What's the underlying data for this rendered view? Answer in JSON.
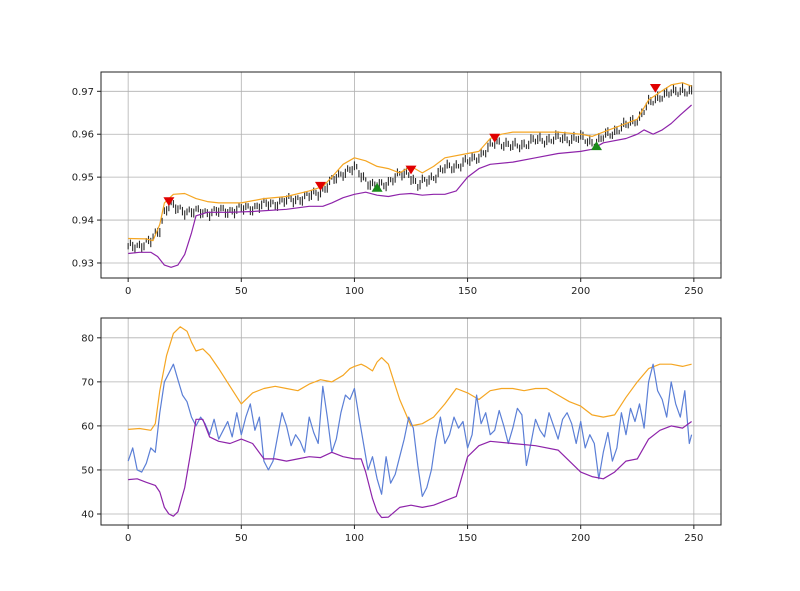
{
  "chart_data": [
    {
      "type": "line",
      "subtype": "ohlc-bars-with-envelope",
      "title": "",
      "xlabel": "",
      "ylabel": "",
      "xlim": [
        -12,
        262
      ],
      "ylim": [
        0.9265,
        0.9745
      ],
      "xticks": [
        0,
        50,
        100,
        150,
        200,
        250
      ],
      "yticks": [
        0.93,
        0.94,
        0.95,
        0.96,
        0.97
      ],
      "ytick_format": "0.00",
      "grid": true,
      "legend": "none",
      "colors": {
        "bars": "#2b2b2b",
        "upper": "#f5a623",
        "lower": "#8e24aa",
        "sell_marker": "#e00000",
        "buy_marker": "#1a8a1a"
      },
      "close_points": [
        [
          0,
          0.9335
        ],
        [
          5,
          0.9342
        ],
        [
          10,
          0.935
        ],
        [
          14,
          0.938
        ],
        [
          16,
          0.942
        ],
        [
          18,
          0.9435
        ],
        [
          22,
          0.9425
        ],
        [
          30,
          0.9418
        ],
        [
          40,
          0.942
        ],
        [
          50,
          0.9425
        ],
        [
          60,
          0.9435
        ],
        [
          70,
          0.9445
        ],
        [
          80,
          0.9455
        ],
        [
          86,
          0.947
        ],
        [
          90,
          0.949
        ],
        [
          95,
          0.9512
        ],
        [
          100,
          0.952
        ],
        [
          104,
          0.95
        ],
        [
          108,
          0.948
        ],
        [
          112,
          0.948
        ],
        [
          118,
          0.95
        ],
        [
          124,
          0.951
        ],
        [
          128,
          0.948
        ],
        [
          133,
          0.9495
        ],
        [
          140,
          0.952
        ],
        [
          150,
          0.9535
        ],
        [
          158,
          0.956
        ],
        [
          163,
          0.9585
        ],
        [
          170,
          0.957
        ],
        [
          180,
          0.9585
        ],
        [
          190,
          0.959
        ],
        [
          200,
          0.959
        ],
        [
          207,
          0.958
        ],
        [
          212,
          0.96
        ],
        [
          220,
          0.962
        ],
        [
          226,
          0.964
        ],
        [
          230,
          0.967
        ],
        [
          235,
          0.969
        ],
        [
          240,
          0.9695
        ],
        [
          245,
          0.9705
        ],
        [
          249,
          0.9695
        ]
      ],
      "series": [
        {
          "name": "",
          "role": "upper",
          "x": [
            0,
            8,
            11,
            14,
            16,
            20,
            25,
            30,
            35,
            40,
            50,
            60,
            70,
            80,
            86,
            90,
            95,
            100,
            105,
            110,
            115,
            120,
            125,
            130,
            135,
            140,
            150,
            155,
            160,
            165,
            170,
            180,
            190,
            200,
            205,
            210,
            220,
            225,
            230,
            235,
            240,
            245,
            249
          ],
          "y": [
            0.9357,
            0.9356,
            0.9352,
            0.939,
            0.944,
            0.946,
            0.9462,
            0.945,
            0.9443,
            0.944,
            0.944,
            0.945,
            0.9455,
            0.9468,
            0.9478,
            0.95,
            0.953,
            0.9545,
            0.9538,
            0.9525,
            0.952,
            0.951,
            0.9525,
            0.951,
            0.9525,
            0.9545,
            0.9555,
            0.956,
            0.959,
            0.96,
            0.9605,
            0.9605,
            0.9605,
            0.96,
            0.9595,
            0.9605,
            0.9625,
            0.9635,
            0.968,
            0.9698,
            0.9715,
            0.972,
            0.9712
          ]
        },
        {
          "name": "",
          "role": "lower",
          "x": [
            0,
            5,
            10,
            13,
            16,
            19,
            22,
            25,
            28,
            30,
            35,
            45,
            55,
            70,
            80,
            86,
            90,
            95,
            100,
            105,
            110,
            115,
            120,
            125,
            130,
            135,
            140,
            145,
            150,
            155,
            160,
            170,
            180,
            190,
            200,
            205,
            210,
            220,
            225,
            228,
            232,
            236,
            240,
            244,
            249
          ],
          "y": [
            0.9322,
            0.9325,
            0.9325,
            0.9315,
            0.9295,
            0.929,
            0.9295,
            0.932,
            0.937,
            0.941,
            0.9418,
            0.9418,
            0.942,
            0.9425,
            0.9432,
            0.9432,
            0.944,
            0.9452,
            0.946,
            0.9465,
            0.9458,
            0.9455,
            0.946,
            0.9462,
            0.9458,
            0.946,
            0.946,
            0.9468,
            0.95,
            0.952,
            0.953,
            0.9535,
            0.9545,
            0.9555,
            0.956,
            0.9565,
            0.958,
            0.959,
            0.96,
            0.961,
            0.96,
            0.961,
            0.9625,
            0.9645,
            0.9668
          ]
        }
      ],
      "markers": [
        {
          "type": "sell",
          "shape": "triangle-down",
          "x": 18,
          "y": 0.9444
        },
        {
          "type": "sell",
          "shape": "triangle-down",
          "x": 85,
          "y": 0.948
        },
        {
          "type": "buy",
          "shape": "triangle-up",
          "x": 110,
          "y": 0.9475
        },
        {
          "type": "sell",
          "shape": "triangle-down",
          "x": 125,
          "y": 0.9518
        },
        {
          "type": "sell",
          "shape": "triangle-down",
          "x": 162,
          "y": 0.9592
        },
        {
          "type": "buy",
          "shape": "triangle-up",
          "x": 207,
          "y": 0.9572
        },
        {
          "type": "sell",
          "shape": "triangle-down",
          "x": 233,
          "y": 0.9708
        }
      ]
    },
    {
      "type": "line",
      "title": "",
      "xlabel": "",
      "ylabel": "",
      "xlim": [
        -12,
        262
      ],
      "ylim": [
        37.5,
        84.5
      ],
      "xticks": [
        0,
        50,
        100,
        150,
        200,
        250
      ],
      "yticks": [
        40,
        50,
        60,
        70,
        80
      ],
      "ytick_format": "0",
      "grid": true,
      "legend": "none",
      "series": [
        {
          "name": "",
          "role": "upper",
          "color": "#f5a623",
          "x": [
            0,
            5,
            10,
            12,
            14,
            17,
            20,
            23,
            26,
            28,
            30,
            33,
            36,
            40,
            45,
            50,
            55,
            60,
            65,
            70,
            75,
            80,
            85,
            90,
            95,
            98,
            100,
            103,
            105,
            108,
            110,
            112,
            115,
            120,
            125,
            130,
            135,
            140,
            145,
            150,
            155,
            160,
            165,
            170,
            175,
            180,
            185,
            190,
            195,
            200,
            205,
            210,
            215,
            220,
            225,
            230,
            235,
            240,
            245,
            249
          ],
          "y": [
            59.2,
            59.4,
            59.0,
            60.5,
            68.0,
            76.0,
            81.0,
            82.5,
            81.5,
            79.0,
            77.0,
            77.5,
            76.0,
            73.0,
            69.0,
            65.0,
            67.5,
            68.5,
            69.0,
            68.5,
            68.0,
            69.5,
            70.5,
            70.0,
            71.5,
            73.0,
            73.5,
            74.0,
            73.5,
            72.5,
            74.5,
            75.5,
            74.0,
            66.0,
            60.0,
            60.5,
            62.0,
            65.0,
            68.5,
            67.5,
            66.0,
            68.0,
            68.5,
            68.5,
            68.0,
            68.5,
            68.5,
            67.0,
            65.5,
            64.5,
            62.5,
            62.0,
            62.5,
            66.5,
            70.0,
            73.0,
            74.0,
            74.0,
            73.5,
            74.0
          ]
        },
        {
          "name": "",
          "role": "indicator",
          "color": "#5b7fd6",
          "x": [
            0,
            2,
            4,
            6,
            8,
            10,
            12,
            14,
            16,
            18,
            20,
            22,
            24,
            26,
            28,
            30,
            32,
            34,
            36,
            38,
            40,
            42,
            44,
            46,
            48,
            50,
            52,
            54,
            56,
            58,
            60,
            62,
            64,
            66,
            68,
            70,
            72,
            74,
            76,
            78,
            80,
            82,
            84,
            86,
            88,
            90,
            92,
            94,
            96,
            98,
            100,
            102,
            104,
            106,
            108,
            110,
            112,
            114,
            116,
            118,
            120,
            122,
            124,
            126,
            128,
            130,
            132,
            134,
            136,
            138,
            140,
            142,
            144,
            146,
            148,
            150,
            152,
            154,
            156,
            158,
            160,
            162,
            164,
            166,
            168,
            170,
            172,
            174,
            176,
            178,
            180,
            182,
            184,
            186,
            188,
            190,
            192,
            194,
            196,
            198,
            200,
            202,
            204,
            206,
            208,
            210,
            212,
            214,
            216,
            218,
            220,
            222,
            224,
            226,
            228,
            230,
            232,
            234,
            236,
            238,
            240,
            242,
            244,
            246,
            248,
            249
          ],
          "y": [
            52.0,
            55.0,
            50.0,
            49.5,
            51.5,
            55.0,
            54.0,
            63.0,
            70.0,
            72.0,
            74.0,
            70.5,
            67.0,
            65.5,
            62.0,
            60.0,
            62.0,
            60.5,
            58.0,
            61.5,
            57.0,
            59.0,
            61.0,
            57.5,
            63.0,
            58.0,
            62.0,
            65.0,
            59.0,
            62.0,
            52.0,
            50.0,
            52.0,
            57.5,
            63.0,
            60.0,
            55.5,
            58.0,
            56.5,
            54.0,
            62.0,
            58.5,
            56.0,
            69.0,
            62.0,
            54.0,
            57.0,
            63.0,
            67.0,
            66.0,
            68.5,
            62.0,
            56.0,
            50.0,
            53.0,
            48.0,
            44.5,
            53.0,
            47.0,
            49.0,
            53.0,
            57.0,
            62.0,
            59.5,
            51.0,
            44.0,
            46.0,
            50.0,
            57.0,
            62.0,
            56.0,
            58.0,
            62.0,
            59.5,
            61.0,
            55.0,
            58.0,
            67.0,
            60.5,
            63.0,
            58.0,
            59.0,
            63.5,
            60.0,
            56.0,
            59.5,
            64.0,
            62.5,
            51.0,
            56.0,
            61.5,
            59.0,
            57.5,
            63.0,
            60.0,
            57.0,
            61.5,
            63.0,
            60.5,
            56.0,
            61.0,
            55.0,
            58.0,
            56.0,
            48.0,
            54.0,
            58.5,
            52.0,
            55.0,
            63.0,
            58.0,
            64.0,
            61.0,
            65.0,
            59.5,
            70.0,
            74.0,
            68.0,
            66.0,
            62.0,
            70.0,
            65.0,
            62.0,
            68.0,
            56.0,
            58.0
          ]
        },
        {
          "name": "",
          "role": "lower",
          "color": "#8e24aa",
          "x": [
            0,
            4,
            8,
            12,
            14,
            16,
            18,
            20,
            22,
            25,
            28,
            30,
            33,
            36,
            40,
            45,
            50,
            55,
            60,
            65,
            70,
            75,
            80,
            85,
            90,
            95,
            100,
            103,
            105,
            108,
            110,
            112,
            115,
            120,
            125,
            130,
            135,
            140,
            145,
            150,
            155,
            160,
            170,
            180,
            190,
            200,
            205,
            210,
            215,
            220,
            225,
            230,
            235,
            240,
            245,
            249
          ],
          "y": [
            47.8,
            48.0,
            47.2,
            46.5,
            45.0,
            41.5,
            40.0,
            39.5,
            40.5,
            46.0,
            55.0,
            61.5,
            61.5,
            57.5,
            56.5,
            56.0,
            57.0,
            56.0,
            52.5,
            52.5,
            52.0,
            52.5,
            53.0,
            52.8,
            54.0,
            53.0,
            52.5,
            52.5,
            49.5,
            43.5,
            40.5,
            39.2,
            39.3,
            41.5,
            42.0,
            41.5,
            42.0,
            43.0,
            44.0,
            53.0,
            55.5,
            56.5,
            56.0,
            55.5,
            54.5,
            49.5,
            48.5,
            48.0,
            49.5,
            52.0,
            52.5,
            57.0,
            59.0,
            60.0,
            59.5,
            61.0
          ]
        }
      ]
    }
  ]
}
